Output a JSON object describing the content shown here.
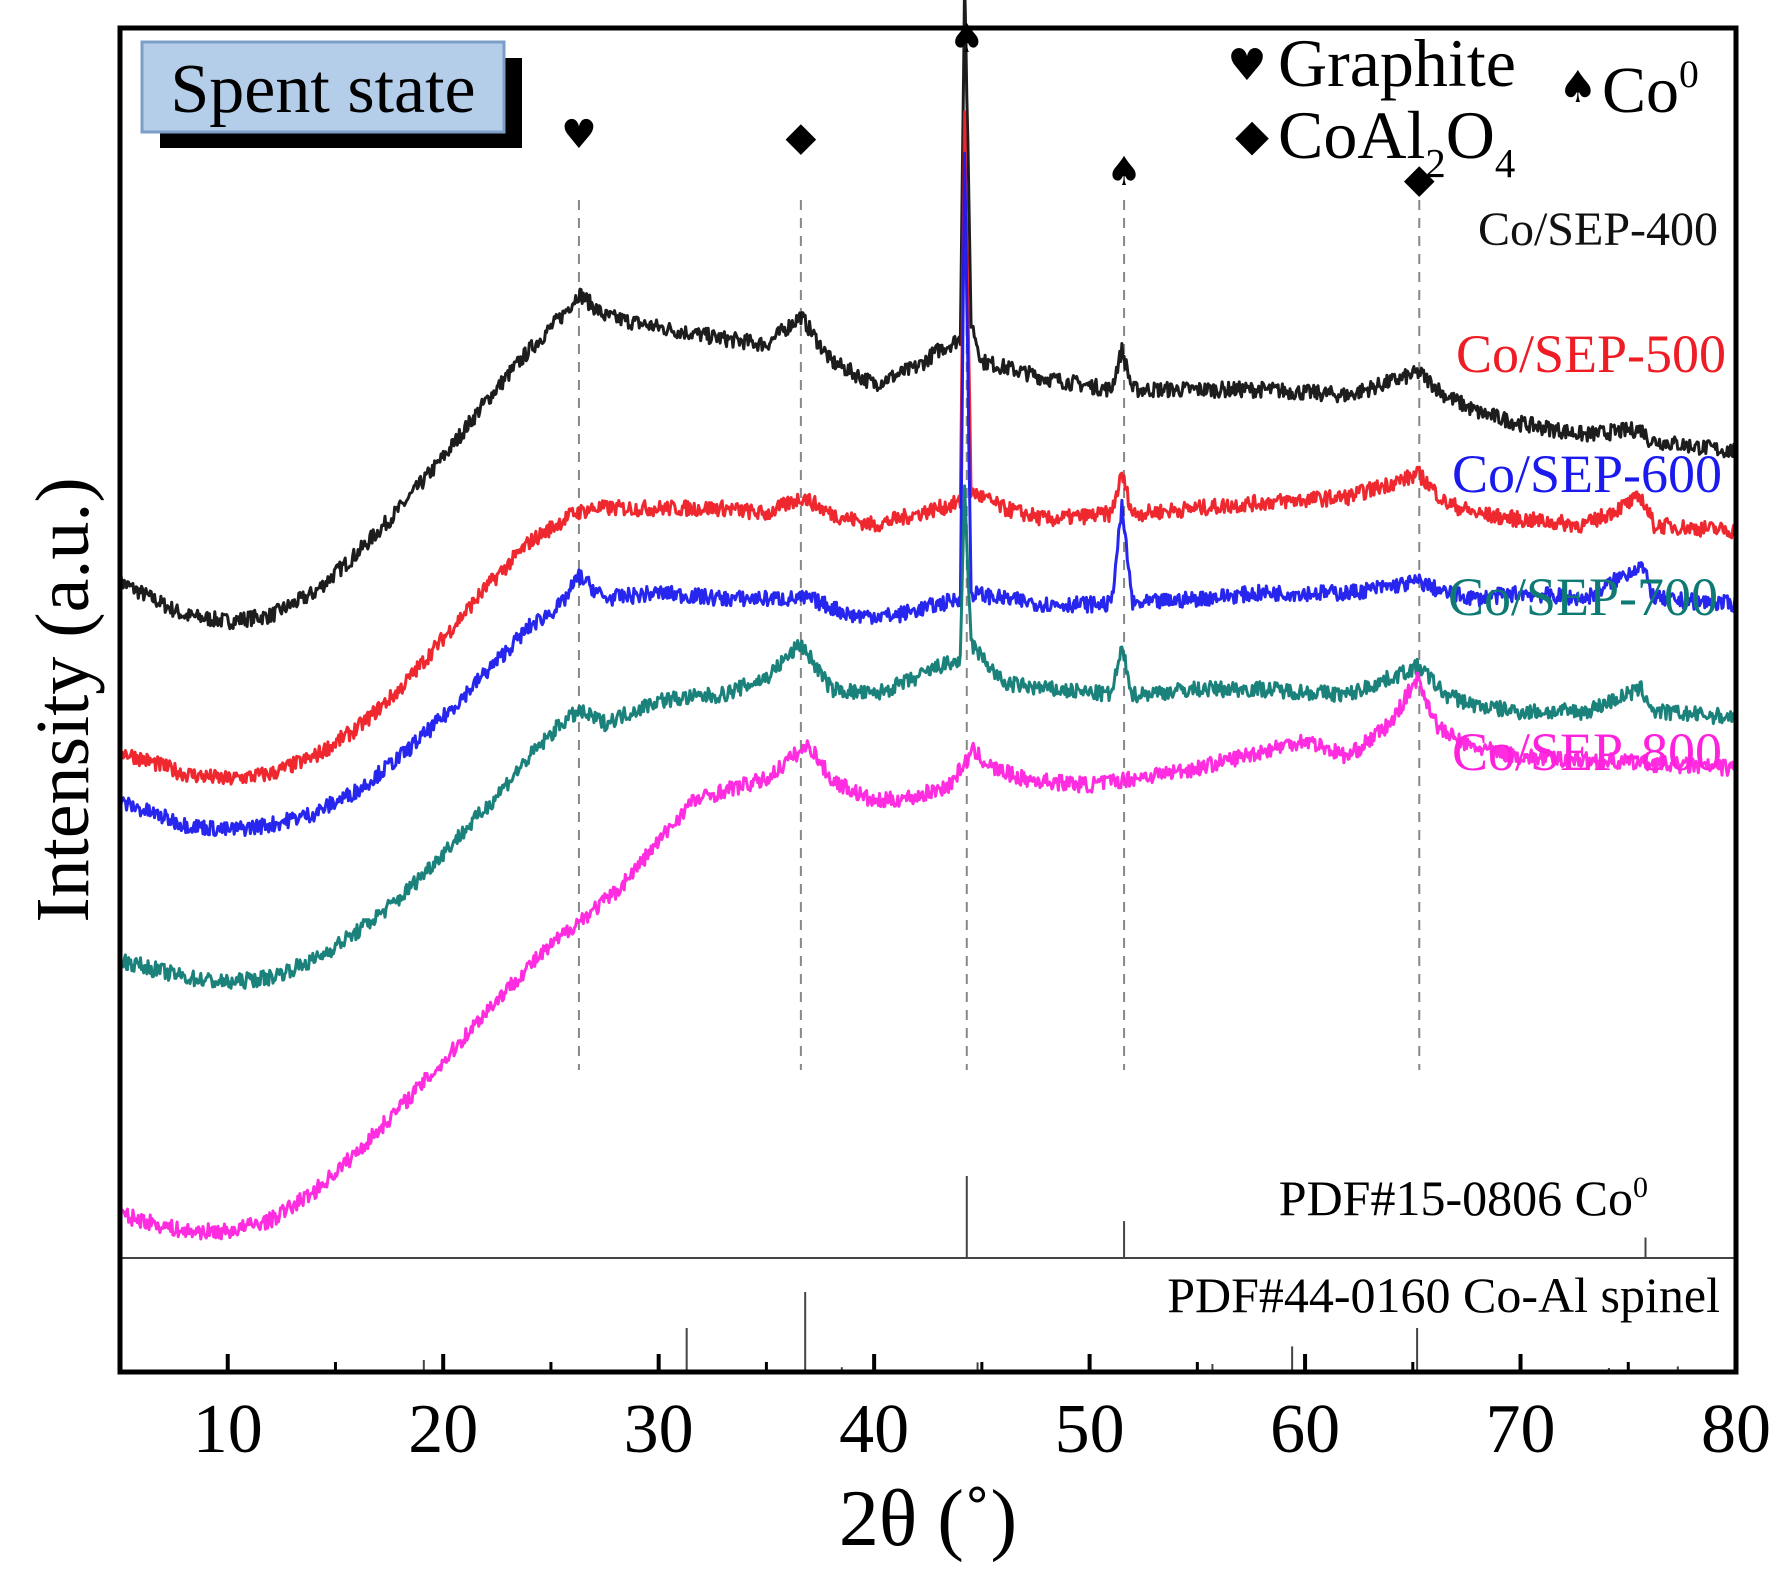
{
  "chart_data": {
    "type": "line",
    "title": "",
    "badge": "Spent state",
    "xlabel": "2θ (˚)",
    "ylabel": "Intensity (a.u.)",
    "xlim": [
      5,
      80
    ],
    "xticks": [
      10,
      20,
      30,
      40,
      50,
      60,
      70,
      80
    ],
    "xtick_labels": [
      "10",
      "20",
      "30",
      "40",
      "50",
      "60",
      "70",
      "80"
    ],
    "yticks_shown": false,
    "legend": {
      "position": "top-right",
      "entries": [
        {
          "symbol": "♥",
          "label": "Graphite",
          "html": "Graphite"
        },
        {
          "symbol": "♠",
          "label": "Co0",
          "html": "Co<sup>0</sup>"
        },
        {
          "symbol": "◆",
          "label": "CoAl2O4",
          "html": "CoAl<sub>2</sub>O<sub>4</sub>"
        }
      ]
    },
    "series": [
      {
        "name": "Co/SEP-400",
        "color": "#111111",
        "baseline": 0.0,
        "points": [
          [
            5,
            0.39
          ],
          [
            8,
            0.33
          ],
          [
            10,
            0.32
          ],
          [
            12,
            0.33
          ],
          [
            14,
            0.37
          ],
          [
            16,
            0.44
          ],
          [
            18,
            0.52
          ],
          [
            20,
            0.61
          ],
          [
            22,
            0.71
          ],
          [
            24,
            0.8
          ],
          [
            25.5,
            0.86
          ],
          [
            26.3,
            0.9
          ],
          [
            27.5,
            0.86
          ],
          [
            30,
            0.84
          ],
          [
            33,
            0.82
          ],
          [
            35,
            0.81
          ],
          [
            36.6,
            0.86
          ],
          [
            38,
            0.78
          ],
          [
            40,
            0.74
          ],
          [
            42,
            0.77
          ],
          [
            43,
            0.8
          ],
          [
            44,
            0.82
          ],
          [
            44.2,
            1.46
          ],
          [
            44.5,
            0.85
          ],
          [
            45,
            0.78
          ],
          [
            48,
            0.75
          ],
          [
            51,
            0.73
          ],
          [
            51.5,
            0.8
          ],
          [
            52,
            0.73
          ],
          [
            55,
            0.73
          ],
          [
            58,
            0.73
          ],
          [
            62,
            0.72
          ],
          [
            65.3,
            0.76
          ],
          [
            66.5,
            0.72
          ],
          [
            68,
            0.69
          ],
          [
            70,
            0.67
          ],
          [
            73,
            0.65
          ],
          [
            75.6,
            0.66
          ],
          [
            76,
            0.64
          ],
          [
            80,
            0.62
          ]
        ],
        "peaks": [
          [
            26.3,
            0.03
          ],
          [
            36.6,
            0.03
          ],
          [
            44.2,
            0.58
          ],
          [
            51.5,
            0.06
          ],
          [
            65.3,
            0.03
          ],
          [
            75.6,
            0.03
          ]
        ],
        "label": "Co/SEP-400"
      },
      {
        "name": "Co/SEP-500",
        "color": "#ee1c25",
        "baseline": 0.0,
        "points": [
          [
            5,
            0.09
          ],
          [
            8,
            0.05
          ],
          [
            10,
            0.04
          ],
          [
            12,
            0.05
          ],
          [
            14,
            0.08
          ],
          [
            16,
            0.13
          ],
          [
            18,
            0.2
          ],
          [
            20,
            0.29
          ],
          [
            22,
            0.38
          ],
          [
            24,
            0.46
          ],
          [
            26,
            0.51
          ],
          [
            27,
            0.52
          ],
          [
            30,
            0.52
          ],
          [
            33,
            0.52
          ],
          [
            35,
            0.51
          ],
          [
            36.7,
            0.54
          ],
          [
            38,
            0.51
          ],
          [
            40,
            0.49
          ],
          [
            42,
            0.51
          ],
          [
            44,
            0.53
          ],
          [
            44.2,
            1.22
          ],
          [
            44.5,
            0.55
          ],
          [
            46,
            0.52
          ],
          [
            48,
            0.5
          ],
          [
            51,
            0.51
          ],
          [
            51.5,
            0.58
          ],
          [
            52,
            0.51
          ],
          [
            55,
            0.52
          ],
          [
            58,
            0.53
          ],
          [
            62,
            0.54
          ],
          [
            65.3,
            0.58
          ],
          [
            66.5,
            0.53
          ],
          [
            68,
            0.51
          ],
          [
            70,
            0.5
          ],
          [
            73,
            0.49
          ],
          [
            75.6,
            0.54
          ],
          [
            76.2,
            0.49
          ],
          [
            80,
            0.48
          ]
        ],
        "peaks": [
          [
            44.2,
            0.55
          ],
          [
            51.5,
            0.07
          ],
          [
            65.3,
            0.03
          ],
          [
            75.6,
            0.04
          ]
        ],
        "label": "Co/SEP-500"
      },
      {
        "name": "Co/SEP-600",
        "color": "#1a1aee",
        "baseline": 0.0,
        "points": [
          [
            5,
            0.0
          ],
          [
            8,
            -0.04
          ],
          [
            10,
            -0.05
          ],
          [
            12,
            -0.04
          ],
          [
            14,
            -0.02
          ],
          [
            16,
            0.02
          ],
          [
            18,
            0.08
          ],
          [
            20,
            0.15
          ],
          [
            22,
            0.23
          ],
          [
            24,
            0.31
          ],
          [
            25.5,
            0.35
          ],
          [
            26.3,
            0.4
          ],
          [
            27.5,
            0.36
          ],
          [
            30,
            0.37
          ],
          [
            33,
            0.36
          ],
          [
            35,
            0.36
          ],
          [
            37,
            0.36
          ],
          [
            39,
            0.33
          ],
          [
            41,
            0.33
          ],
          [
            43,
            0.35
          ],
          [
            44,
            0.36
          ],
          [
            44.2,
            1.15
          ],
          [
            44.5,
            0.37
          ],
          [
            46,
            0.36
          ],
          [
            48,
            0.35
          ],
          [
            51,
            0.35
          ],
          [
            51.5,
            0.52
          ],
          [
            52,
            0.35
          ],
          [
            55,
            0.36
          ],
          [
            58,
            0.37
          ],
          [
            62,
            0.37
          ],
          [
            65.3,
            0.39
          ],
          [
            66.5,
            0.37
          ],
          [
            68,
            0.36
          ],
          [
            70,
            0.37
          ],
          [
            73,
            0.36
          ],
          [
            75.6,
            0.42
          ],
          [
            76.2,
            0.36
          ],
          [
            80,
            0.35
          ]
        ],
        "peaks": [
          [
            26.3,
            0.04
          ],
          [
            44.2,
            0.7
          ],
          [
            51.5,
            0.13
          ],
          [
            75.6,
            0.05
          ]
        ],
        "label": "Co/SEP-600"
      },
      {
        "name": "Co/SEP-700",
        "color": "#0f7a74",
        "baseline": 0.0,
        "points": [
          [
            5,
            -0.28
          ],
          [
            8,
            -0.31
          ],
          [
            10,
            -0.32
          ],
          [
            12,
            -0.31
          ],
          [
            14,
            -0.28
          ],
          [
            16,
            -0.23
          ],
          [
            18,
            -0.17
          ],
          [
            20,
            -0.09
          ],
          [
            22,
            -0.01
          ],
          [
            24,
            0.08
          ],
          [
            25.5,
            0.14
          ],
          [
            26.3,
            0.16
          ],
          [
            27.5,
            0.14
          ],
          [
            30,
            0.18
          ],
          [
            33,
            0.19
          ],
          [
            35,
            0.22
          ],
          [
            36.6,
            0.28
          ],
          [
            38,
            0.2
          ],
          [
            40,
            0.19
          ],
          [
            42,
            0.22
          ],
          [
            43,
            0.24
          ],
          [
            44,
            0.25
          ],
          [
            44.2,
            0.55
          ],
          [
            44.5,
            0.28
          ],
          [
            46,
            0.21
          ],
          [
            48,
            0.2
          ],
          [
            51,
            0.19
          ],
          [
            51.5,
            0.27
          ],
          [
            52,
            0.19
          ],
          [
            55,
            0.2
          ],
          [
            58,
            0.2
          ],
          [
            62,
            0.19
          ],
          [
            65.3,
            0.24
          ],
          [
            66.5,
            0.19
          ],
          [
            68,
            0.17
          ],
          [
            70,
            0.16
          ],
          [
            73,
            0.16
          ],
          [
            75.6,
            0.2
          ],
          [
            76.2,
            0.16
          ],
          [
            80,
            0.15
          ]
        ],
        "peaks": [
          [
            36.6,
            0.02
          ],
          [
            44.2,
            0.28
          ],
          [
            51.5,
            0.07
          ],
          [
            65.3,
            0.02
          ],
          [
            75.6,
            0.02
          ]
        ],
        "label": "Co/SEP-700"
      },
      {
        "name": "Co/SEP-800",
        "color": "#ff22dd",
        "baseline": 0.0,
        "points": [
          [
            5,
            -0.73
          ],
          [
            8,
            -0.76
          ],
          [
            10,
            -0.76
          ],
          [
            12,
            -0.74
          ],
          [
            14,
            -0.69
          ],
          [
            16,
            -0.62
          ],
          [
            18,
            -0.54
          ],
          [
            20,
            -0.46
          ],
          [
            22,
            -0.37
          ],
          [
            24,
            -0.29
          ],
          [
            26,
            -0.22
          ],
          [
            28,
            -0.16
          ],
          [
            30,
            -0.07
          ],
          [
            31.5,
            0.0
          ],
          [
            33,
            0.02
          ],
          [
            35,
            0.04
          ],
          [
            36.2,
            0.08
          ],
          [
            37,
            0.1
          ],
          [
            38,
            0.04
          ],
          [
            40,
            0.0
          ],
          [
            42,
            0.01
          ],
          [
            43.5,
            0.03
          ],
          [
            44.6,
            0.09
          ],
          [
            45.5,
            0.06
          ],
          [
            47,
            0.04
          ],
          [
            50,
            0.03
          ],
          [
            55,
            0.06
          ],
          [
            58,
            0.09
          ],
          [
            60,
            0.11
          ],
          [
            62,
            0.08
          ],
          [
            64,
            0.14
          ],
          [
            65.2,
            0.22
          ],
          [
            66.2,
            0.13
          ],
          [
            67.5,
            0.1
          ],
          [
            70,
            0.08
          ],
          [
            75,
            0.07
          ],
          [
            80,
            0.06
          ]
        ],
        "peaks": [],
        "label": "Co/SEP-800"
      }
    ],
    "reference_lines": [
      {
        "x": 26.3,
        "symbol": "♥"
      },
      {
        "x": 36.6,
        "symbol": "◆"
      },
      {
        "x": 44.3,
        "symbol": "♠"
      },
      {
        "x": 51.6,
        "symbol": "♠"
      },
      {
        "x": 65.3,
        "symbol": "◆"
      }
    ],
    "reference_patterns": [
      {
        "name": "PDF#15-0806 Co0",
        "html": "PDF#15-0806 Co<sup>0</sup>",
        "sticks": [
          [
            44.3,
            1.0
          ],
          [
            51.6,
            0.45
          ],
          [
            75.8,
            0.25
          ]
        ]
      },
      {
        "name": "PDF#44-0160 Co-Al spinel",
        "sticks": [
          [
            19.1,
            0.15
          ],
          [
            31.3,
            0.55
          ],
          [
            36.8,
            1.0
          ],
          [
            38.5,
            0.06
          ],
          [
            44.8,
            0.12
          ],
          [
            55.7,
            0.1
          ],
          [
            59.4,
            0.32
          ],
          [
            65.2,
            0.55
          ],
          [
            74.1,
            0.05
          ],
          [
            77.3,
            0.07
          ]
        ]
      }
    ]
  }
}
